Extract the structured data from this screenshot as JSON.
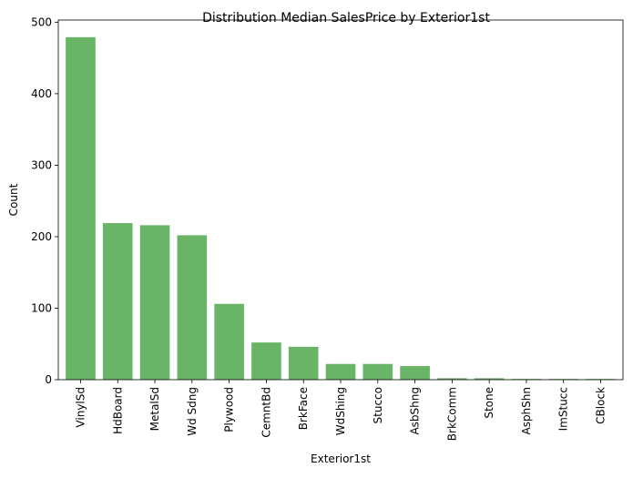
{
  "chart_data": {
    "type": "bar",
    "title": "Distribution Median SalesPrice by Exterior1st",
    "xlabel": "Exterior1st",
    "ylabel": "Count",
    "categories": [
      "VinylSd",
      "HdBoard",
      "MetalSd",
      "Wd Sdng",
      "Plywood",
      "CemntBd",
      "BrkFace",
      "WdShing",
      "Stucco",
      "AsbShng",
      "BrkComm",
      "Stone",
      "AsphShn",
      "ImStucc",
      "CBlock"
    ],
    "values": [
      479,
      219,
      216,
      202,
      106,
      52,
      46,
      22,
      22,
      19,
      2,
      2,
      1,
      1,
      1
    ],
    "ylim": [
      0,
      503
    ],
    "yticks": [
      0,
      100,
      200,
      300,
      400,
      500
    ],
    "bar_color": "#6ab467",
    "grid": false,
    "legend": "none"
  }
}
